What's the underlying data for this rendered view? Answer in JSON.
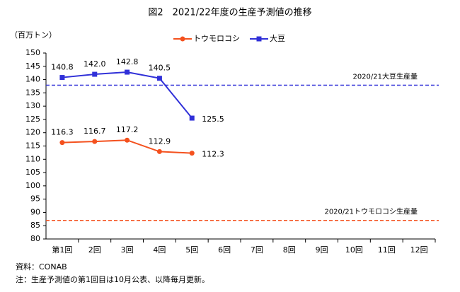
{
  "chart_data": {
    "type": "line",
    "title": "図2　2021/22年度の生産予測値の推移",
    "y_label": "（百万トン）",
    "categories": [
      "第1回",
      "2回",
      "3回",
      "4回",
      "5回",
      "6回",
      "7回",
      "8回",
      "9回",
      "10回",
      "11回",
      "12回"
    ],
    "series": [
      {
        "name": "トウモロコシ",
        "color": "#f4511e",
        "marker": "circle",
        "values": [
          116.3,
          116.7,
          117.2,
          112.9,
          112.3,
          null,
          null,
          null,
          null,
          null,
          null,
          null
        ],
        "value_labels": [
          "116.3",
          "116.7",
          "117.2",
          "112.9",
          "112.3",
          null,
          null,
          null,
          null,
          null,
          null,
          null
        ]
      },
      {
        "name": "大豆",
        "color": "#3030d8",
        "marker": "square",
        "values": [
          140.8,
          142.0,
          142.8,
          140.5,
          125.5,
          null,
          null,
          null,
          null,
          null,
          null,
          null
        ],
        "value_labels": [
          "140.8",
          "142.0",
          "142.8",
          "140.5",
          "125.5",
          null,
          null,
          null,
          null,
          null,
          null,
          null
        ]
      }
    ],
    "reference_lines": [
      {
        "label": "2020/21大豆生産量",
        "value": 137.9,
        "color": "#3030d8"
      },
      {
        "label": "2020/21トウモロコシ生産量",
        "value": 87,
        "color": "#f4511e"
      }
    ],
    "ylim": [
      80,
      150
    ],
    "yticks": [
      80,
      85,
      90,
      95,
      100,
      105,
      110,
      115,
      120,
      125,
      130,
      135,
      140,
      145,
      150
    ],
    "legend": "top",
    "source": "資料：CONAB",
    "note": "注：生産予測値の第1回目は10月公表、以降毎月更新。"
  }
}
